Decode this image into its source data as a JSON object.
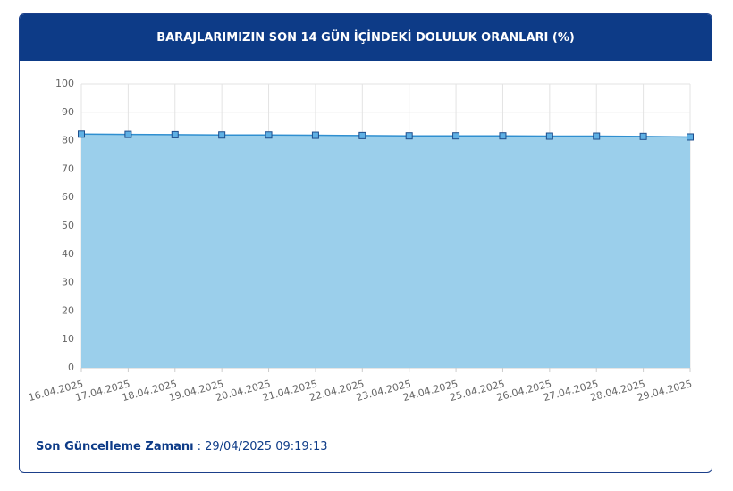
{
  "chart_data": {
    "type": "area",
    "title": "BARAJLARIMIZIN SON 14 GÜN İÇİNDEKİ DOLULUK ORANLARI (%)",
    "categories": [
      "16.04.2025",
      "17.04.2025",
      "18.04.2025",
      "19.04.2025",
      "20.04.2025",
      "21.04.2025",
      "22.04.2025",
      "23.04.2025",
      "24.04.2025",
      "25.04.2025",
      "26.04.2025",
      "27.04.2025",
      "28.04.2025",
      "29.04.2025"
    ],
    "values": [
      82.3,
      82.2,
      82.1,
      82.0,
      82.0,
      81.9,
      81.8,
      81.7,
      81.7,
      81.7,
      81.6,
      81.6,
      81.5,
      81.3
    ],
    "color": "#2f8fd0",
    "fill": "#9bcfeb",
    "ylim": [
      0,
      100
    ],
    "yticks": [
      0,
      10,
      20,
      30,
      40,
      50,
      60,
      70,
      80,
      90,
      100
    ],
    "grid": true
  },
  "footer": {
    "label": "Son Güncelleme Zamanı",
    "value": ": 29/04/2025 09:19:13"
  }
}
